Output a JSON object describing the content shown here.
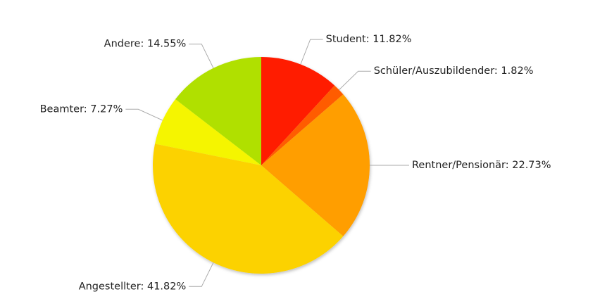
{
  "chart_data": {
    "type": "pie",
    "labels": [
      "Student: 11.82%",
      "Schüler/Auszubildender: 1.82%",
      "Rentner/Pensionär: 22.73%",
      "Angestellter: 41.82%",
      "Beamter: 7.27%",
      "Andere: 14.55%"
    ],
    "values": [
      11.82,
      1.82,
      22.73,
      41.82,
      7.27,
      14.55
    ],
    "colors": [
      "#ff1a00",
      "#ff5c00",
      "#ff9e00",
      "#fcd200",
      "#f5f500",
      "#b0e000"
    ]
  }
}
